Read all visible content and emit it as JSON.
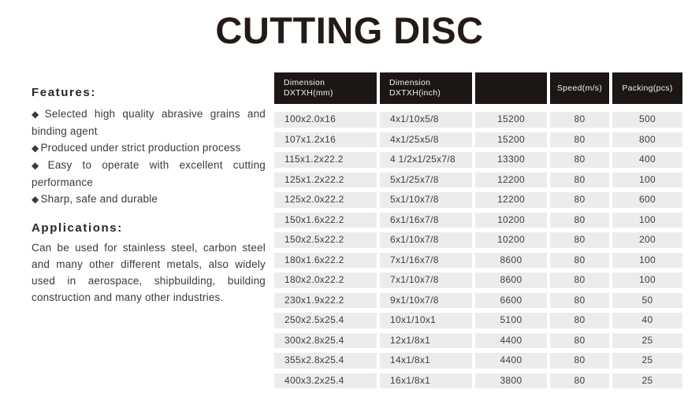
{
  "page": {
    "title": "CUTTING DISC"
  },
  "features": {
    "heading": "Features:",
    "bullet_icon": "◆",
    "items": [
      "Selected high quality abrasive grains and binding agent",
      "Produced under strict production process",
      "Easy to operate with excellent cutting performance",
      "Sharp, safe and durable"
    ]
  },
  "applications": {
    "heading": "Applications:",
    "text": "Can be used for stainless steel, carbon steel and many other different metals, also widely used in aerospace, shipbuilding, building construction and many other industries."
  },
  "spec_table": {
    "columns": [
      {
        "line1": "Dimension",
        "line2": "DXTXH(mm)"
      },
      {
        "line1": "Dimension",
        "line2": "DXTXH(inch)"
      },
      {
        "line1": "",
        "line2": ""
      },
      {
        "line1": "Speed(m/s)",
        "line2": ""
      },
      {
        "line1": "Packing(pcs)",
        "line2": ""
      }
    ],
    "rows": [
      [
        "100x2.0x16",
        "4x1/10x5/8",
        "15200",
        "80",
        "500"
      ],
      [
        "107x1.2x16",
        "4x1/25x5/8",
        "15200",
        "80",
        "800"
      ],
      [
        "115x1.2x22.2",
        "4 1/2x1/25x7/8",
        "13300",
        "80",
        "400"
      ],
      [
        "125x1.2x22.2",
        "5x1/25x7/8",
        "12200",
        "80",
        "100"
      ],
      [
        "125x2.0x22.2",
        "5x1/10x7/8",
        "12200",
        "80",
        "600"
      ],
      [
        "150x1.6x22.2",
        "6x1/16x7/8",
        "10200",
        "80",
        "100"
      ],
      [
        "150x2.5x22.2",
        "6x1/10x7/8",
        "10200",
        "80",
        "200"
      ],
      [
        "180x1.6x22.2",
        "7x1/16x7/8",
        "8600",
        "80",
        "100"
      ],
      [
        "180x2.0x22.2",
        "7x1/10x7/8",
        "8600",
        "80",
        "100"
      ],
      [
        "230x1.9x22.2",
        "9x1/10x7/8",
        "6600",
        "80",
        "50"
      ],
      [
        "250x2.5x25.4",
        "10x1/10x1",
        "5100",
        "80",
        "40"
      ],
      [
        "300x2.8x25.4",
        "12x1/8x1",
        "4400",
        "80",
        "25"
      ],
      [
        "355x2.8x25.4",
        "14x1/8x1",
        "4400",
        "80",
        "25"
      ],
      [
        "400x3.2x25.4",
        "16x1/8x1",
        "3800",
        "80",
        "25"
      ]
    ]
  },
  "colors": {
    "header_bg": "#1c1714",
    "header_text": "#f3f2f0",
    "row_bg": "#ececec",
    "data_text": "#3e3e3e",
    "title_text": "#241b17"
  }
}
